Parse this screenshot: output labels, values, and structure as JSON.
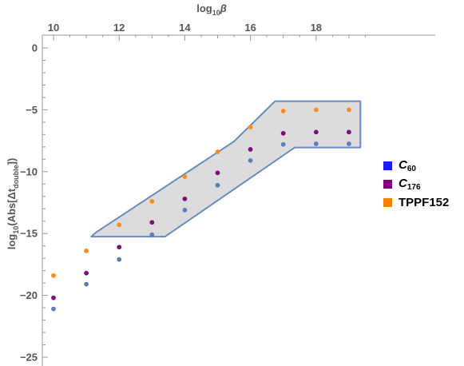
{
  "chart_data": {
    "type": "scatter",
    "xlabel_main": "log",
    "xlabel_sub": "10",
    "xlabel_var": "β",
    "ylabel_main": "log",
    "ylabel_sub": "10",
    "ylabel_rest": "(Abs[Δt",
    "ylabel_rest_sub": "double",
    "ylabel_close": "])",
    "xlim": [
      9.7,
      19.8
    ],
    "ylim": [
      -25.8,
      0.6
    ],
    "x_ticks": [
      10,
      12,
      14,
      16,
      18
    ],
    "y_ticks": [
      0,
      -5,
      -10,
      -15,
      -20,
      -25
    ],
    "series": [
      {
        "name_main": "C",
        "name_sub": "60",
        "italic": true,
        "legend_color": "#1a1aff",
        "point_color": "#5b7fb5",
        "x": [
          10,
          11,
          12,
          13,
          14,
          15,
          16,
          17,
          18,
          19
        ],
        "y": [
          -21.1,
          -19.1,
          -17.1,
          -15.1,
          -13.1,
          -11.1,
          -9.1,
          -7.8,
          -7.75,
          -7.75
        ]
      },
      {
        "name_main": "C",
        "name_sub": "176",
        "italic": true,
        "legend_color": "#800080",
        "point_color": "#7a0f7a",
        "x": [
          10,
          11,
          12,
          13,
          14,
          15,
          16,
          17,
          18,
          19
        ],
        "y": [
          -20.2,
          -18.2,
          -16.1,
          -14.1,
          -12.2,
          -10.1,
          -8.2,
          -6.9,
          -6.8,
          -6.8
        ]
      },
      {
        "name_main": "TPPF152",
        "name_sub": "",
        "italic": false,
        "legend_color": "#ff8000",
        "point_color": "#ff8c1a",
        "x": [
          10,
          11,
          12,
          13,
          14,
          15,
          16,
          17,
          18,
          19
        ],
        "y": [
          -18.4,
          -16.4,
          -14.3,
          -12.4,
          -10.4,
          -8.4,
          -6.4,
          -5.1,
          -5.0,
          -5.0
        ]
      }
    ],
    "region": {
      "fill": "#dcdcdc",
      "stroke": "#6a8bc0",
      "points": [
        [
          11.15,
          -15.25
        ],
        [
          11.3,
          -14.9
        ],
        [
          15.5,
          -7.55
        ],
        [
          16.75,
          -4.3
        ],
        [
          19.35,
          -4.3
        ],
        [
          19.35,
          -8.05
        ],
        [
          17.35,
          -8.05
        ],
        [
          13.4,
          -15.25
        ]
      ]
    }
  }
}
